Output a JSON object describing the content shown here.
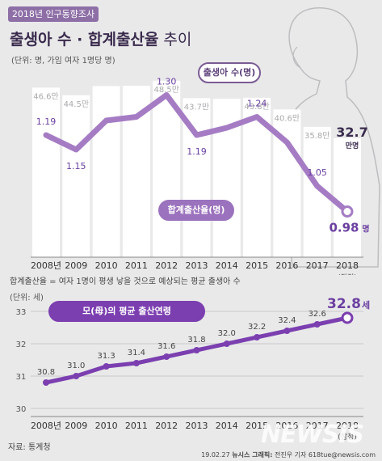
{
  "header": {
    "tag": "2018년 인구동향조사",
    "title_main": "출생아 수 · 합계출산율",
    "title_suffix": " 추이",
    "unit_note": "(단위: 명, 가임 여자 1명당 명)"
  },
  "chart_data": [
    {
      "type": "bar",
      "categories": [
        "2008년",
        "2009",
        "2010",
        "2011",
        "2012",
        "2013",
        "2014",
        "2015",
        "2016",
        "2017",
        "2018"
      ],
      "series": [
        {
          "name": "출생아 수",
          "values": [
            46.6,
            44.5,
            47.0,
            47.1,
            48.5,
            43.7,
            43.5,
            43.8,
            40.6,
            35.8,
            32.7
          ]
        }
      ],
      "value_labels": [
        "46.6만",
        "44.5만",
        "",
        "",
        "48.5만",
        "43.7만",
        "",
        "43.8만",
        "40.6만",
        "35.8만",
        "32.7"
      ],
      "last_label_unit": "만명",
      "x_sublabel_last": "(잠정)",
      "ylim": [
        0,
        50
      ]
    },
    {
      "type": "line",
      "categories": [
        "2008년",
        "2009",
        "2010",
        "2011",
        "2012",
        "2013",
        "2014",
        "2015",
        "2016",
        "2017",
        "2018"
      ],
      "series": [
        {
          "name": "합계출산율",
          "values": [
            1.19,
            1.15,
            1.23,
            1.24,
            1.3,
            1.19,
            1.21,
            1.24,
            1.17,
            1.05,
            0.98
          ]
        }
      ],
      "value_labels": [
        "1.19",
        "1.15",
        "",
        "",
        "1.30",
        "1.19",
        "",
        "1.24",
        "",
        "1.05",
        "0.98"
      ],
      "last_label_unit": "명",
      "ylim": [
        0.85,
        1.45
      ]
    },
    {
      "type": "line",
      "title": "모(母)의 평균 출산연령",
      "categories": [
        "2008년",
        "2009",
        "2010",
        "2011",
        "2012",
        "2013",
        "2014",
        "2015",
        "2016",
        "2017",
        "2018"
      ],
      "series": [
        {
          "name": "모(母)의 평균 출산연령",
          "values": [
            30.8,
            31.0,
            31.3,
            31.4,
            31.6,
            31.8,
            32.0,
            32.2,
            32.4,
            32.6,
            32.8
          ]
        }
      ],
      "value_labels": [
        "30.8",
        "31.0",
        "31.3",
        "31.4",
        "31.6",
        "31.8",
        "32.0",
        "32.2",
        "32.4",
        "32.6",
        "32.8"
      ],
      "last_label_unit": "세",
      "yticks": [
        "33",
        "32",
        "31",
        "30"
      ],
      "ylim": [
        30,
        33
      ],
      "x_sublabel_last": "(잠정)",
      "unit_label": "(단위: 세)"
    }
  ],
  "bubbles": {
    "births": "출생아 수(명)",
    "tfr": "합계출산율(명)",
    "age": "모(母)의 평균 출산연령"
  },
  "footer": {
    "definition": "합계출산율 = 여자 1명이 평생 낳을 것으로 예상되는 평균 출생아 수",
    "source": "자료: 통계청",
    "credit_date": "19.02.27",
    "credit_brand": "뉴시스 그래픽:",
    "credit_author": "전진우 기자 618tue@newsis.com",
    "watermark": "NEWSIS"
  },
  "colors": {
    "bar": "#ffffff",
    "line": "#a57cc4",
    "accent": "#6b3fa0",
    "age_line": "#7b3fb0"
  }
}
